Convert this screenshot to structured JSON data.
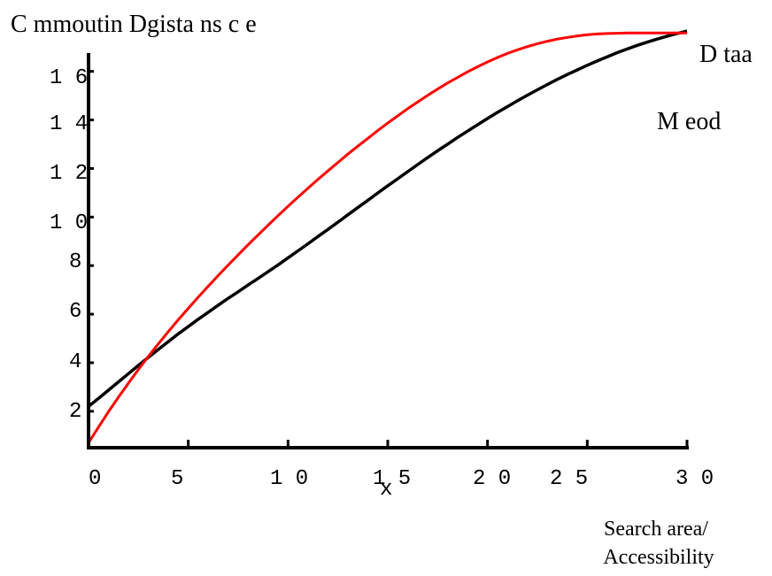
{
  "chart_data": {
    "type": "line",
    "title": "C mmoutin Dgista ns c e",
    "xlabel": "Search area/ Accessibility",
    "xlabel_lines": [
      "Search area/",
      "Accessibility"
    ],
    "x_unit_marker": "x",
    "ylabel": "",
    "x_tick_labels": [
      "0",
      "5",
      "1 0",
      "1 5",
      "2 0",
      "2 5",
      "3 0"
    ],
    "y_tick_labels": [
      "2",
      "4",
      "6",
      "8",
      "1 0",
      "1 2",
      "1 4",
      "1 6"
    ],
    "xlim": [
      0,
      3.0
    ],
    "ylim": [
      0.5,
      17.3
    ],
    "grid": false,
    "legend": "inline-right",
    "series": [
      {
        "name": "D taa",
        "color": "#000000",
        "x": [
          0.0,
          0.05,
          0.1,
          0.15,
          0.2,
          0.25,
          0.3,
          0.35,
          0.4,
          0.45,
          0.5,
          0.55,
          0.6,
          0.65,
          0.7,
          0.75,
          0.8,
          0.85,
          0.9,
          0.95,
          1.0,
          1.05,
          1.1,
          1.15,
          1.2,
          1.25,
          1.3,
          1.35,
          1.4,
          1.45,
          1.5,
          1.55,
          1.6,
          1.65,
          1.7,
          1.75,
          1.8,
          1.85,
          1.9,
          1.95,
          2.0,
          2.05,
          2.1,
          2.15,
          2.2,
          2.25,
          2.3,
          2.35,
          2.4,
          2.45,
          2.5,
          2.55,
          2.6,
          2.65,
          2.7,
          2.75,
          2.8,
          2.85,
          2.9,
          2.95,
          3.0
        ],
        "y": [
          2.2,
          2.53,
          2.87,
          3.21,
          3.55,
          3.89,
          4.22,
          4.55,
          4.87,
          5.19,
          5.49,
          5.79,
          6.08,
          6.37,
          6.65,
          6.92,
          7.2,
          7.47,
          7.75,
          8.03,
          8.32,
          8.61,
          8.9,
          9.2,
          9.49,
          9.79,
          10.09,
          10.39,
          10.69,
          10.99,
          11.29,
          11.58,
          11.87,
          12.16,
          12.45,
          12.73,
          13.0,
          13.28,
          13.54,
          13.8,
          14.06,
          14.31,
          14.55,
          14.79,
          15.02,
          15.24,
          15.46,
          15.67,
          15.87,
          16.06,
          16.25,
          16.43,
          16.6,
          16.77,
          16.92,
          17.07,
          17.2,
          17.33,
          17.45,
          17.56,
          17.66
        ]
      },
      {
        "name": "M eod",
        "color": "#ff0000",
        "x": [
          0.0,
          0.05,
          0.1,
          0.15,
          0.2,
          0.25,
          0.3,
          0.35,
          0.4,
          0.45,
          0.5,
          0.55,
          0.6,
          0.65,
          0.7,
          0.75,
          0.8,
          0.85,
          0.9,
          0.95,
          1.0,
          1.05,
          1.1,
          1.15,
          1.2,
          1.25,
          1.3,
          1.35,
          1.4,
          1.45,
          1.5,
          1.55,
          1.6,
          1.65,
          1.7,
          1.75,
          1.8,
          1.85,
          1.9,
          1.95,
          2.0,
          2.05,
          2.1,
          2.15,
          2.2,
          2.25,
          2.3,
          2.35,
          2.4,
          2.45,
          2.5,
          2.55,
          2.6,
          2.65,
          2.7,
          2.75,
          2.8,
          2.85,
          2.9,
          2.95,
          3.0
        ],
        "y": [
          0.7,
          1.35,
          1.98,
          2.58,
          3.16,
          3.72,
          4.26,
          4.78,
          5.28,
          5.77,
          6.24,
          6.7,
          7.15,
          7.59,
          8.02,
          8.44,
          8.86,
          9.26,
          9.66,
          10.06,
          10.44,
          10.82,
          11.19,
          11.55,
          11.9,
          12.25,
          12.59,
          12.92,
          13.24,
          13.56,
          13.87,
          14.17,
          14.46,
          14.74,
          15.01,
          15.27,
          15.52,
          15.75,
          15.98,
          16.19,
          16.39,
          16.57,
          16.74,
          16.89,
          17.02,
          17.14,
          17.24,
          17.33,
          17.4,
          17.46,
          17.51,
          17.54,
          17.56,
          17.57,
          17.58,
          17.58,
          17.58,
          17.58,
          17.58,
          17.58,
          17.58
        ]
      }
    ]
  }
}
